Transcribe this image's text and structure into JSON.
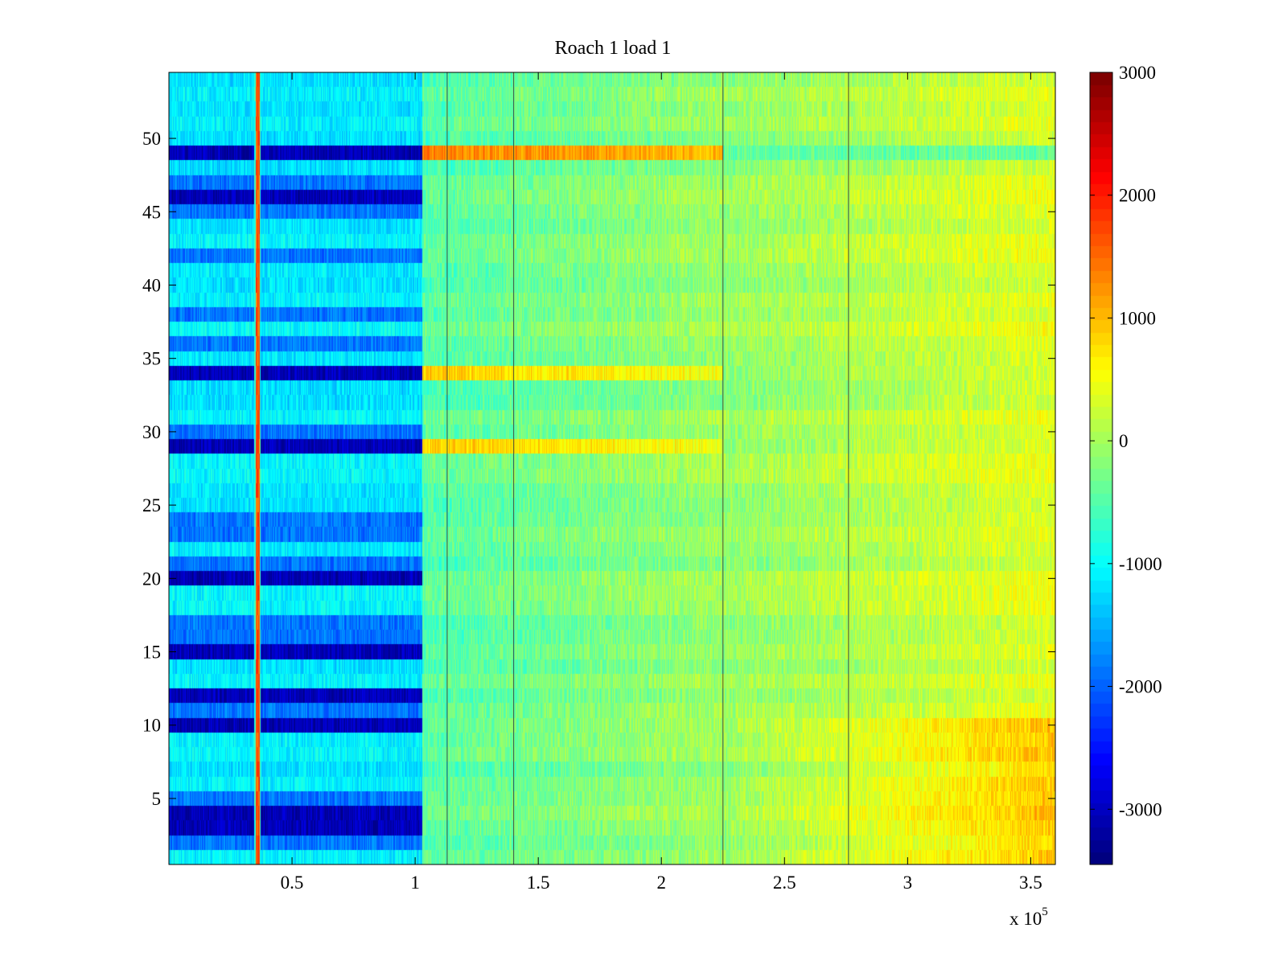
{
  "chart_data": {
    "type": "heatmap",
    "title": "Roach 1 load 1",
    "xlabel": "",
    "ylabel": "",
    "x_multiplier_label": "x 10",
    "x_multiplier_exponent": "5",
    "xlim": [
      0,
      3.6
    ],
    "ylim": [
      0.5,
      54.5
    ],
    "xticks": [
      0.5,
      1,
      1.5,
      2,
      2.5,
      3,
      3.5
    ],
    "xtick_labels": [
      "0.5",
      "1",
      "1.5",
      "2",
      "2.5",
      "3",
      "3.5"
    ],
    "yticks": [
      5,
      10,
      15,
      20,
      25,
      30,
      35,
      40,
      45,
      50
    ],
    "ytick_labels": [
      "5",
      "10",
      "15",
      "20",
      "25",
      "30",
      "35",
      "40",
      "45",
      "50"
    ],
    "rows": 54,
    "colorbar": {
      "colormap": "jet",
      "clim": [
        -3450,
        3000
      ],
      "ticks": [
        3000,
        2000,
        1000,
        0,
        -1000,
        -2000,
        -3000
      ],
      "tick_labels": [
        "3000",
        "2000",
        "1000",
        "0",
        "-1000",
        "-2000",
        "-3000"
      ]
    },
    "vertical_event_lines_x": [
      0.36,
      1.13,
      1.4,
      2.25,
      2.76
    ],
    "segments": [
      {
        "x_range": [
          0,
          1.03
        ],
        "description": "low values",
        "typical_value": -1300
      },
      {
        "x_range": [
          1.03,
          2.25
        ],
        "typical_value": -200
      },
      {
        "x_range": [
          2.25,
          3.6
        ],
        "typical_value": 200
      }
    ],
    "strongly_negative_rows": [
      49,
      46,
      34,
      29,
      20,
      15,
      12,
      10,
      4,
      3
    ],
    "moderately_negative_rows": [
      47,
      45,
      42,
      38,
      36,
      30,
      24,
      23,
      21,
      17,
      16,
      11,
      5,
      2
    ],
    "strongly_positive_rows": [
      49,
      34,
      29
    ]
  }
}
